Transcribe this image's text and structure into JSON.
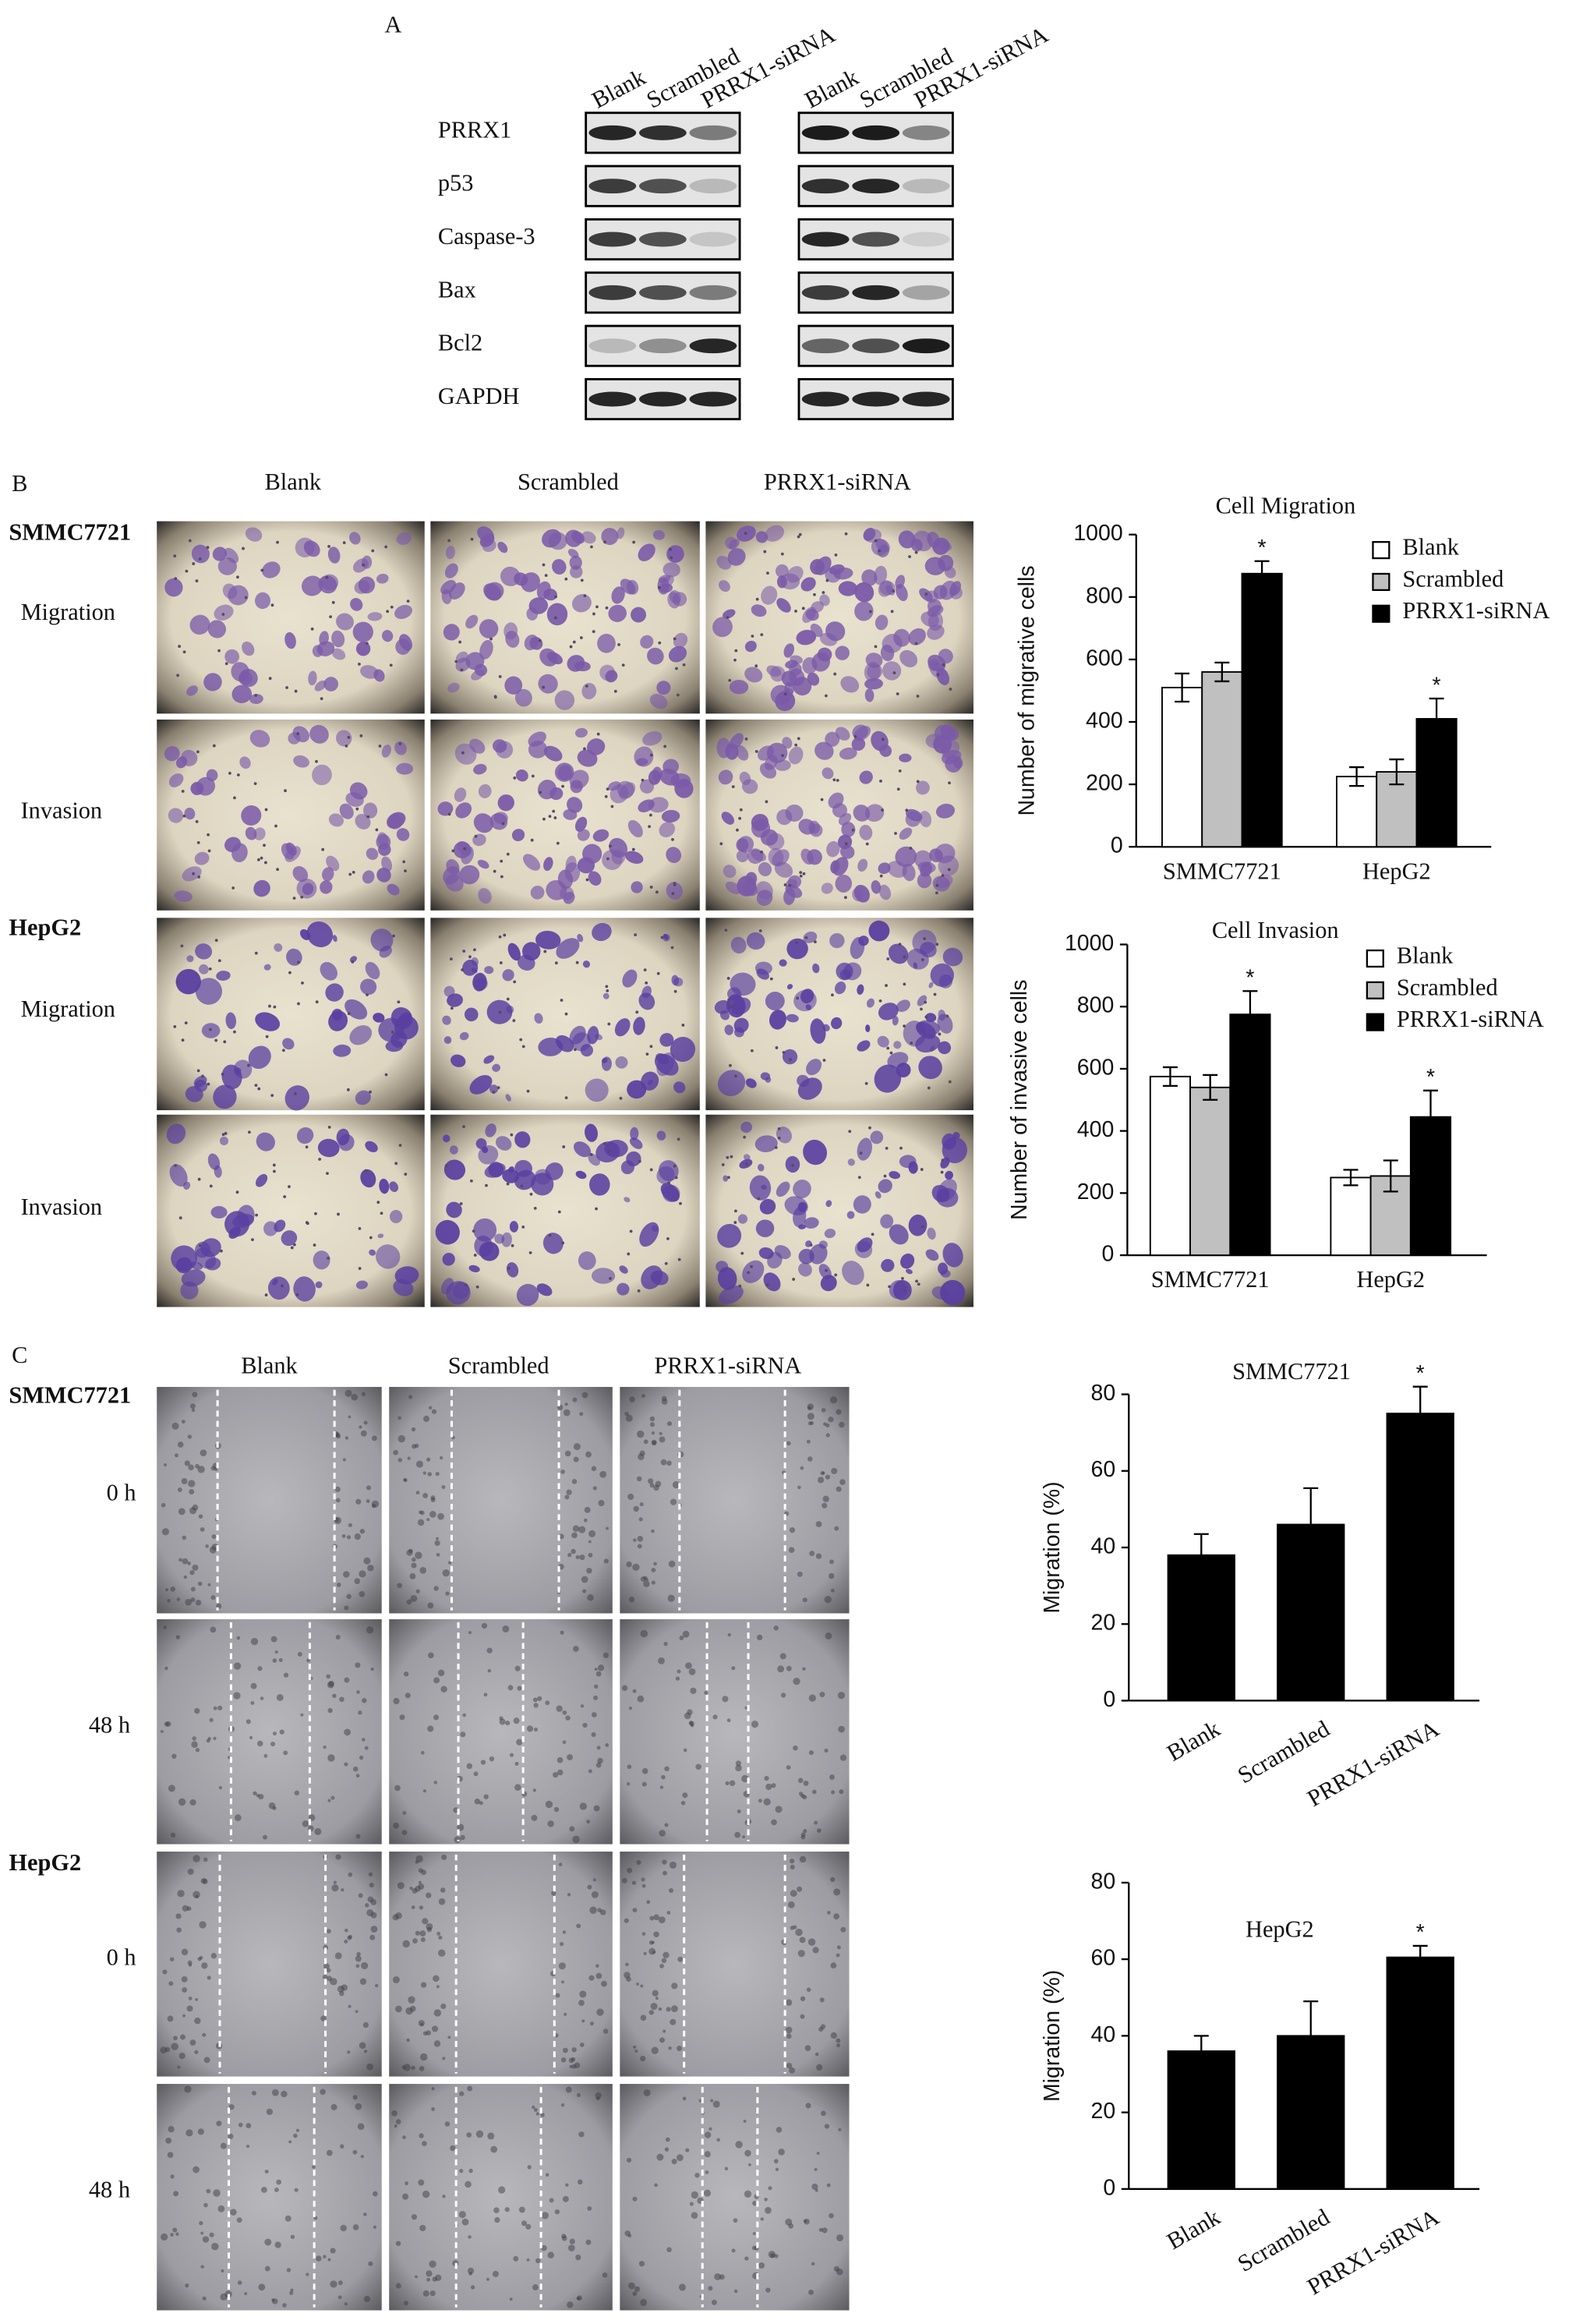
{
  "panel_a": {
    "label": "A",
    "lanes": [
      "Blank",
      "Scrambled",
      "PRRX1-siRNA"
    ],
    "proteins": [
      "PRRX1",
      "p53",
      "Caspase-3",
      "Bax",
      "Bcl2",
      "GAPDH"
    ]
  },
  "panel_b": {
    "label": "B",
    "columns": [
      "Blank",
      "Scrambled",
      "PRRX1-siRNA"
    ],
    "cell_lines": [
      "SMMC7721",
      "HepG2"
    ],
    "rows": [
      "Migration",
      "Invasion"
    ]
  },
  "panel_c": {
    "label": "C",
    "columns": [
      "Blank",
      "Scrambled",
      "PRRX1-siRNA"
    ],
    "cell_lines": [
      "SMMC7721",
      "HepG2"
    ],
    "rows": [
      "0 h",
      "48 h"
    ]
  },
  "chart_data": [
    {
      "type": "bar",
      "title": "Cell Migration",
      "y_label": "Number of migrative cells",
      "categories": [
        "SMMC7721",
        "HepG2"
      ],
      "series": [
        {
          "name": "Blank",
          "color": "#ffffff",
          "values": [
            510,
            225
          ],
          "errors": [
            45,
            30
          ]
        },
        {
          "name": "Scrambled",
          "color": "#c0c0c0",
          "values": [
            560,
            240
          ],
          "errors": [
            30,
            40
          ]
        },
        {
          "name": "PRRX1-siRNA",
          "color": "#000000",
          "values": [
            875,
            410
          ],
          "errors": [
            40,
            65
          ],
          "annotations": [
            "*",
            "*"
          ]
        }
      ],
      "ylim": [
        0,
        1000
      ],
      "yticks": [
        0,
        200,
        400,
        600,
        800,
        1000
      ],
      "legend": "upper right"
    },
    {
      "type": "bar",
      "title": "Cell Invasion",
      "y_label": "Number of invasive cells",
      "categories": [
        "SMMC7721",
        "HepG2"
      ],
      "series": [
        {
          "name": "Blank",
          "color": "#ffffff",
          "values": [
            575,
            250
          ],
          "errors": [
            30,
            25
          ]
        },
        {
          "name": "Scrambled",
          "color": "#c0c0c0",
          "values": [
            540,
            255
          ],
          "errors": [
            40,
            50
          ]
        },
        {
          "name": "PRRX1-siRNA",
          "color": "#000000",
          "values": [
            775,
            445
          ],
          "errors": [
            75,
            85
          ],
          "annotations": [
            "*",
            "*"
          ]
        }
      ],
      "ylim": [
        0,
        1000
      ],
      "yticks": [
        0,
        200,
        400,
        600,
        800,
        1000
      ],
      "legend": "upper right"
    },
    {
      "type": "bar",
      "title": "SMMC7721",
      "y_label": "Migration  (%)",
      "categories": [
        "Blank",
        "Scrambled",
        "PRRX1-siRNA"
      ],
      "values": [
        38,
        46,
        75
      ],
      "errors": [
        5.5,
        9.5,
        7
      ],
      "annotations": [
        null,
        null,
        "*"
      ],
      "color": "#000000",
      "ylim": [
        0,
        80
      ],
      "yticks": [
        0,
        20,
        40,
        60,
        80
      ]
    },
    {
      "type": "bar",
      "title": "HepG2",
      "y_label": "Migration  (%)",
      "categories": [
        "Blank",
        "Scrambled",
        "PRRX1-siRNA"
      ],
      "values": [
        36,
        40,
        60.5
      ],
      "errors": [
        4,
        9,
        3
      ],
      "annotations": [
        null,
        null,
        "*"
      ],
      "color": "#000000",
      "ylim": [
        0,
        80
      ],
      "yticks": [
        0,
        20,
        40,
        60,
        80
      ]
    }
  ]
}
